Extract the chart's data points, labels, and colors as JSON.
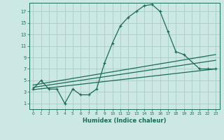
{
  "xlabel": "Humidex (Indice chaleur)",
  "bg_color": "#cce8e4",
  "grid_color": "#aed0cc",
  "line_color": "#1a6b5a",
  "xlim": [
    -0.5,
    23.5
  ],
  "ylim": [
    0,
    18.5
  ],
  "xticks": [
    0,
    1,
    2,
    3,
    4,
    5,
    6,
    7,
    8,
    9,
    10,
    11,
    12,
    13,
    14,
    15,
    16,
    17,
    18,
    19,
    20,
    21,
    22,
    23
  ],
  "yticks": [
    1,
    3,
    5,
    7,
    9,
    11,
    13,
    15,
    17
  ],
  "series_main": {
    "x": [
      0,
      1,
      2,
      3,
      4,
      5,
      6,
      7,
      8,
      9,
      10,
      11,
      12,
      13,
      14,
      15,
      16,
      17,
      18,
      19,
      21,
      22,
      23
    ],
    "y": [
      3.5,
      5.0,
      3.5,
      3.5,
      1.0,
      3.5,
      2.5,
      2.5,
      3.5,
      8.0,
      11.5,
      14.5,
      16.0,
      17.0,
      18.0,
      18.2,
      17.0,
      13.5,
      10.0,
      9.5,
      7.0,
      7.0,
      7.0
    ]
  },
  "series_line1": {
    "x": [
      0,
      23
    ],
    "y": [
      4.2,
      9.5
    ]
  },
  "series_line2": {
    "x": [
      0,
      23
    ],
    "y": [
      3.8,
      8.5
    ]
  },
  "series_line3": {
    "x": [
      0,
      23
    ],
    "y": [
      3.4,
      7.0
    ]
  }
}
